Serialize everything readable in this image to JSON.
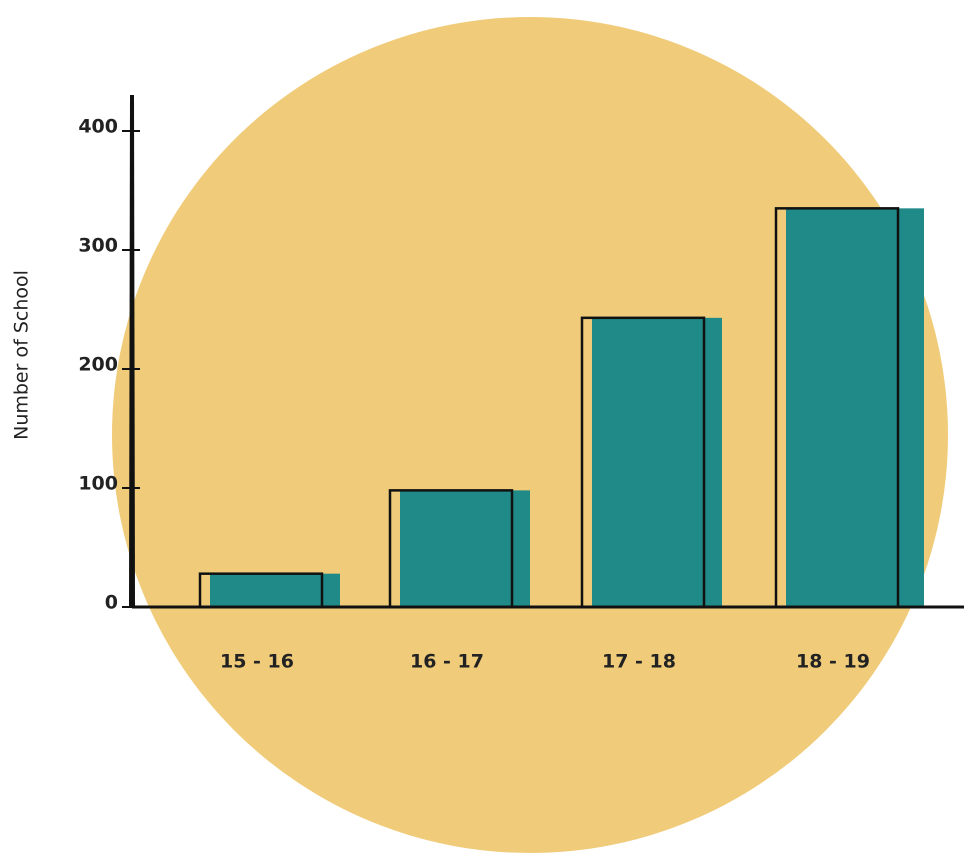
{
  "chart_data": {
    "type": "bar",
    "y_label": "Number of School",
    "categories": [
      "15 - 16",
      "16 - 17",
      "17 - 18",
      "18 - 19"
    ],
    "values": [
      28,
      98,
      243,
      335
    ],
    "color": "#1f8a87",
    "background_color": "#f0cc7a",
    "ylim": [
      0,
      400
    ],
    "yticks": [
      0,
      100,
      200,
      300,
      400
    ],
    "grid": false
  }
}
